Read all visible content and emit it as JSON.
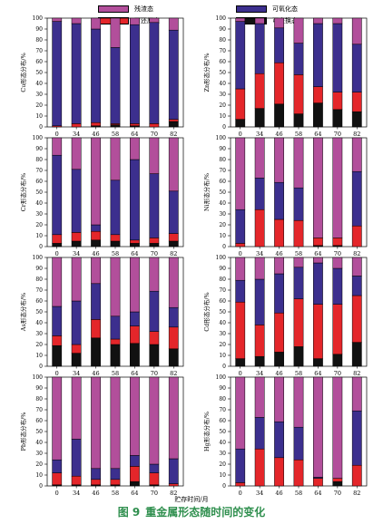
{
  "legend": [
    {
      "label": "残渣态",
      "color": "#b24f9b"
    },
    {
      "label": "可氧化态",
      "color": "#3c2f8e"
    },
    {
      "label": "可还原态",
      "color": "#e4262a"
    },
    {
      "label": "可交换态",
      "color": "#111111"
    }
  ],
  "caption": {
    "num": "图 9",
    "text": "重金属形态随时间的变化"
  },
  "xlabel": "贮存时间/月",
  "chart_data": [
    {
      "type": "bar",
      "stacked": true,
      "metal": "Cu",
      "ylabel": "Cu形态分布/%",
      "categories": [
        "0",
        "34",
        "46",
        "58",
        "64",
        "70",
        "82"
      ],
      "ylim": [
        0,
        100
      ],
      "series": [
        {
          "name": "可交换态",
          "values": [
            0,
            0,
            1,
            2,
            1,
            0,
            5
          ]
        },
        {
          "name": "可还原态",
          "values": [
            1,
            3,
            3,
            1,
            2,
            3,
            2
          ]
        },
        {
          "name": "可氧化态",
          "values": [
            96,
            92,
            86,
            70,
            91,
            93,
            82
          ]
        },
        {
          "name": "残渣态",
          "values": [
            3,
            5,
            10,
            27,
            6,
            4,
            11
          ]
        }
      ]
    },
    {
      "type": "bar",
      "stacked": true,
      "metal": "Zn",
      "ylabel": "Zn形态分布/%",
      "categories": [
        "0",
        "34",
        "46",
        "58",
        "64",
        "70",
        "82"
      ],
      "ylim": [
        0,
        100
      ],
      "series": [
        {
          "name": "可交换态",
          "values": [
            7,
            17,
            21,
            12,
            22,
            16,
            14
          ]
        },
        {
          "name": "可还原态",
          "values": [
            28,
            32,
            38,
            36,
            15,
            16,
            18
          ]
        },
        {
          "name": "可氧化态",
          "values": [
            62,
            46,
            32,
            29,
            58,
            63,
            44
          ]
        },
        {
          "name": "残渣态",
          "values": [
            3,
            5,
            9,
            23,
            5,
            5,
            24
          ]
        }
      ]
    },
    {
      "type": "bar",
      "stacked": true,
      "metal": "Cr",
      "ylabel": "Cr形态分布/%",
      "categories": [
        "0",
        "34",
        "46",
        "58",
        "64",
        "70",
        "82"
      ],
      "ylim": [
        0,
        100
      ],
      "series": [
        {
          "name": "可交换态",
          "values": [
            3,
            5,
            6,
            5,
            3,
            3,
            5
          ]
        },
        {
          "name": "可还原态",
          "values": [
            8,
            8,
            8,
            6,
            3,
            5,
            7
          ]
        },
        {
          "name": "可氧化态",
          "values": [
            73,
            58,
            6,
            50,
            74,
            59,
            39
          ]
        },
        {
          "name": "残渣态",
          "values": [
            16,
            29,
            80,
            39,
            20,
            33,
            49
          ]
        }
      ]
    },
    {
      "type": "bar",
      "stacked": true,
      "metal": "Ni",
      "ylabel": "Ni形态分布/%",
      "categories": [
        "0",
        "34",
        "46",
        "58",
        "64",
        "70",
        "82"
      ],
      "ylim": [
        0,
        100
      ],
      "series": [
        {
          "name": "可交换态",
          "values": [
            0,
            0,
            0,
            0,
            1,
            1,
            0
          ]
        },
        {
          "name": "可还原态",
          "values": [
            3,
            34,
            25,
            24,
            7,
            7,
            19
          ]
        },
        {
          "name": "可氧化态",
          "values": [
            31,
            29,
            34,
            30,
            0,
            0,
            50
          ]
        },
        {
          "name": "残渣态",
          "values": [
            66,
            37,
            41,
            46,
            92,
            92,
            31
          ]
        }
      ]
    },
    {
      "type": "bar",
      "stacked": true,
      "metal": "As",
      "ylabel": "As形态分布/%",
      "categories": [
        "0",
        "34",
        "46",
        "58",
        "64",
        "70",
        "82"
      ],
      "ylim": [
        0,
        100
      ],
      "series": [
        {
          "name": "可交换态",
          "values": [
            19,
            12,
            26,
            20,
            21,
            20,
            16
          ]
        },
        {
          "name": "可还原态",
          "values": [
            9,
            8,
            17,
            5,
            16,
            12,
            20
          ]
        },
        {
          "name": "可氧化态",
          "values": [
            27,
            40,
            33,
            21,
            13,
            37,
            18
          ]
        },
        {
          "name": "残渣态",
          "values": [
            45,
            40,
            24,
            54,
            50,
            31,
            46
          ]
        }
      ]
    },
    {
      "type": "bar",
      "stacked": true,
      "metal": "Cd",
      "ylabel": "Cd形态分布/%",
      "categories": [
        "0",
        "34",
        "46",
        "58",
        "64",
        "70",
        "82"
      ],
      "ylim": [
        0,
        100
      ],
      "series": [
        {
          "name": "可交换态",
          "values": [
            7,
            9,
            13,
            18,
            7,
            11,
            22
          ]
        },
        {
          "name": "可还原态",
          "values": [
            52,
            29,
            36,
            44,
            50,
            46,
            43
          ]
        },
        {
          "name": "可氧化态",
          "values": [
            20,
            42,
            36,
            29,
            38,
            33,
            18
          ]
        },
        {
          "name": "残渣态",
          "values": [
            21,
            20,
            15,
            9,
            5,
            10,
            17
          ]
        }
      ]
    },
    {
      "type": "bar",
      "stacked": true,
      "metal": "Pb",
      "ylabel": "Pb形态分布/%",
      "categories": [
        "0",
        "34",
        "46",
        "58",
        "64",
        "70",
        "82"
      ],
      "ylim": [
        0,
        100
      ],
      "series": [
        {
          "name": "可交换态",
          "values": [
            1,
            1,
            1,
            1,
            4,
            1,
            0
          ]
        },
        {
          "name": "可还原态",
          "values": [
            11,
            8,
            5,
            5,
            14,
            11,
            2
          ]
        },
        {
          "name": "可氧化态",
          "values": [
            12,
            34,
            10,
            10,
            10,
            8,
            23
          ]
        },
        {
          "name": "残渣态",
          "values": [
            76,
            57,
            84,
            84,
            72,
            80,
            75
          ]
        }
      ]
    },
    {
      "type": "bar",
      "stacked": true,
      "metal": "Hg",
      "ylabel": "Hg形态分布/%",
      "categories": [
        "0",
        "34",
        "46",
        "58",
        "64",
        "70",
        "82"
      ],
      "ylim": [
        0,
        100
      ],
      "series": [
        {
          "name": "可交换态",
          "values": [
            0,
            0,
            0,
            0,
            0,
            4,
            0
          ]
        },
        {
          "name": "可还原态",
          "values": [
            3,
            34,
            26,
            24,
            7,
            3,
            19
          ]
        },
        {
          "name": "可氧化态",
          "values": [
            31,
            29,
            33,
            30,
            1,
            0,
            50
          ]
        },
        {
          "name": "残渣态",
          "values": [
            66,
            37,
            41,
            46,
            92,
            93,
            31
          ]
        }
      ]
    }
  ]
}
